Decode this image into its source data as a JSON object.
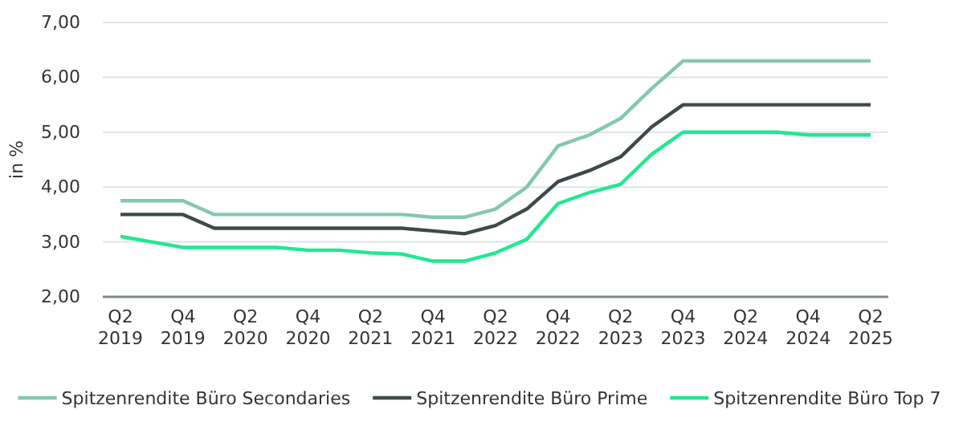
{
  "chart_data": {
    "type": "line",
    "ylabel": "in %",
    "categories": [
      "Q2 2019",
      null,
      "Q4 2019",
      null,
      "Q2 2020",
      null,
      "Q4 2020",
      null,
      "Q2 2021",
      null,
      "Q4 2021",
      null,
      "Q2 2022",
      null,
      "Q4 2022",
      null,
      "Q2 2023",
      null,
      "Q4 2023",
      null,
      "Q2 2024",
      null,
      "Q4 2024",
      null,
      "Q2 2025"
    ],
    "series": [
      {
        "name": "Spitzenrendite Büro Secondaries",
        "color": "#84c7b1",
        "values": [
          3.75,
          3.75,
          3.75,
          3.5,
          3.5,
          3.5,
          3.5,
          3.5,
          3.5,
          3.5,
          3.45,
          3.45,
          3.6,
          4.0,
          4.75,
          4.95,
          5.25,
          5.8,
          6.3,
          6.3,
          6.3,
          6.3,
          6.3,
          6.3,
          6.3
        ]
      },
      {
        "name": "Spitzenrendite Büro Prime",
        "color": "#3d4a4b",
        "values": [
          3.5,
          3.5,
          3.5,
          3.25,
          3.25,
          3.25,
          3.25,
          3.25,
          3.25,
          3.25,
          3.2,
          3.15,
          3.3,
          3.6,
          4.1,
          4.3,
          4.55,
          5.1,
          5.5,
          5.5,
          5.5,
          5.5,
          5.5,
          5.5,
          5.5
        ]
      },
      {
        "name": "Spitzenrendite Büro Top 7",
        "color": "#21e88f",
        "values": [
          3.1,
          3.0,
          2.9,
          2.9,
          2.9,
          2.9,
          2.85,
          2.85,
          2.8,
          2.78,
          2.65,
          2.65,
          2.8,
          3.05,
          3.7,
          3.9,
          4.05,
          4.6,
          5.0,
          5.0,
          5.0,
          5.0,
          4.95,
          4.95,
          4.95
        ]
      }
    ],
    "ylim": [
      2,
      7
    ],
    "yticks": [
      {
        "value": 2,
        "label": "2,00"
      },
      {
        "value": 3,
        "label": "3,00"
      },
      {
        "value": 4,
        "label": "4,00"
      },
      {
        "value": 5,
        "label": "5,00"
      },
      {
        "value": 6,
        "label": "6,00"
      },
      {
        "value": 7,
        "label": "7,00"
      }
    ],
    "grid": "y",
    "legend": "bottom",
    "line_style": "solid",
    "marker": "none"
  }
}
